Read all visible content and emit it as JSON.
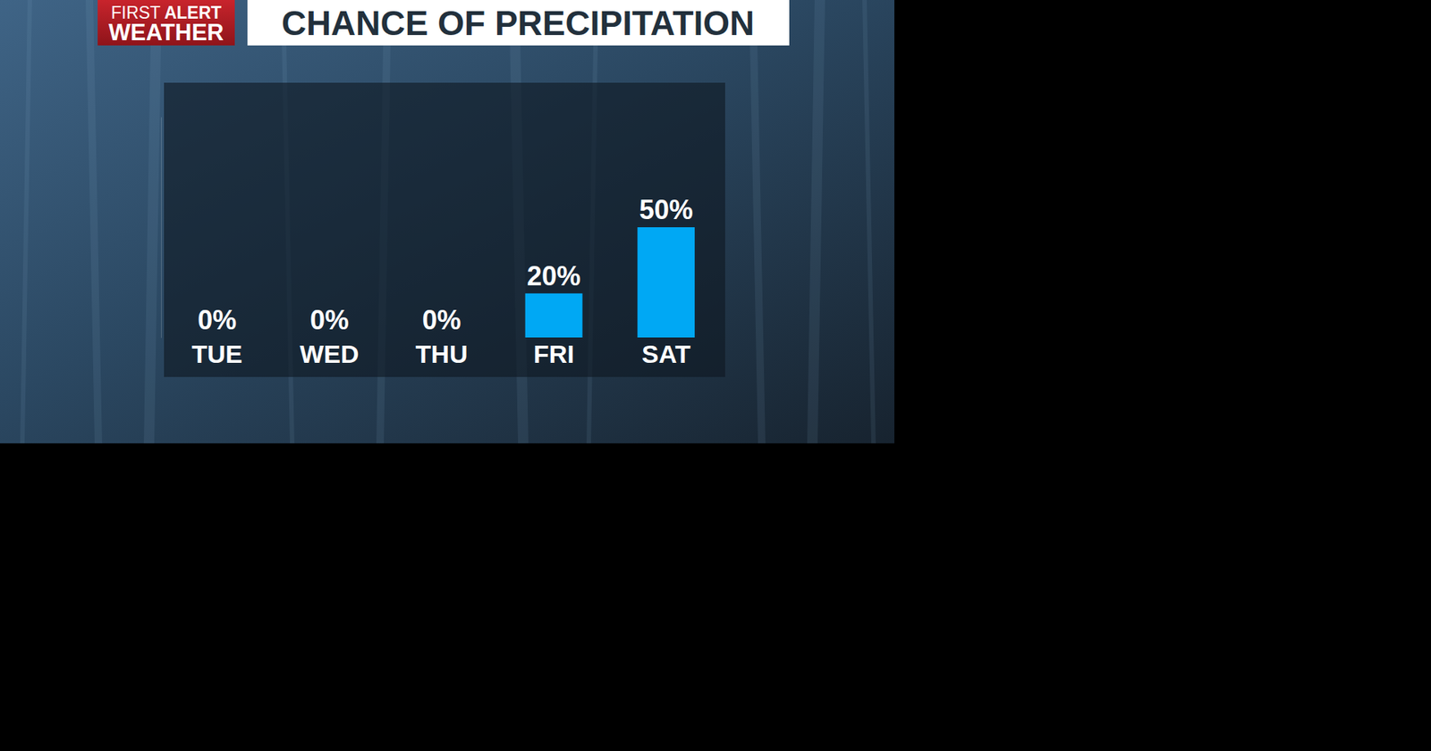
{
  "chart_data": {
    "type": "bar",
    "title": "CHANCE OF PRECIPITATION",
    "logo_text": [
      "FIRST",
      "ALERT",
      "WEATHER"
    ],
    "categories": [
      "TUE",
      "WED",
      "THU",
      "FRI",
      "SAT"
    ],
    "values": [
      0,
      0,
      0,
      20,
      50
    ],
    "value_labels": [
      "0%",
      "0%",
      "0%",
      "20%",
      "50%"
    ],
    "color": "#00a8f4",
    "ylim": [
      0,
      100
    ],
    "data_labels": true,
    "tick_labels": "x"
  }
}
